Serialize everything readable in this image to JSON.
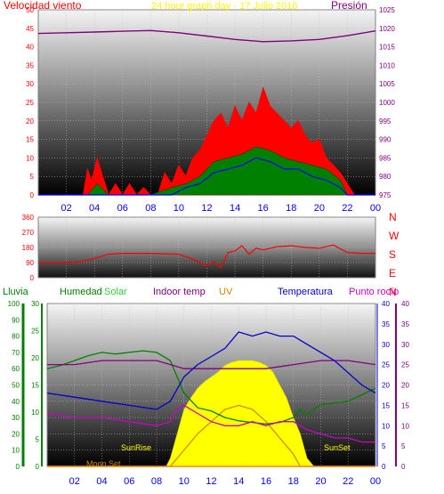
{
  "chart_data": [
    {
      "type": "line",
      "panel": "wind-pressure",
      "title": "24 hour graph day - 17 Julio 2016",
      "left_label": "Velocidad viento",
      "right_label": "Presión",
      "x_ticks": [
        "02",
        "04",
        "06",
        "08",
        "10",
        "12",
        "14",
        "16",
        "18",
        "20",
        "22",
        "00"
      ],
      "ylim_left": [
        0,
        50
      ],
      "yticks_left": [
        0,
        5,
        10,
        15,
        20,
        25,
        30,
        35,
        40,
        45,
        50
      ],
      "ylim_right": [
        975,
        1025
      ],
      "yticks_right": [
        975,
        980,
        985,
        990,
        995,
        1000,
        1005,
        1010,
        1015,
        1020,
        1025
      ],
      "grid": true,
      "colors": {
        "label": "#ff0000",
        "title": "#ffff00",
        "pressure": "#800080",
        "gust": "#ff0000",
        "avg": "#008000",
        "dir": "#0000ff"
      },
      "series": [
        {
          "key": "pressure",
          "axis": "right",
          "x": [
            0,
            2,
            4,
            6,
            8,
            10,
            12,
            14,
            16,
            18,
            20,
            22,
            24
          ],
          "values": [
            1018.6,
            1018.8,
            1019.0,
            1019.2,
            1019.4,
            1018.8,
            1017.9,
            1017.0,
            1016.4,
            1016.6,
            1017.0,
            1018.0,
            1019.3
          ]
        },
        {
          "key": "gust",
          "axis": "left",
          "x": [
            0,
            3.2,
            3.5,
            3.8,
            4.2,
            4.6,
            5.0,
            5.5,
            6.0,
            6.5,
            7.0,
            7.5,
            8.0,
            8.5,
            9.0,
            9.5,
            10.0,
            10.5,
            11.0,
            11.5,
            12.0,
            12.5,
            13.0,
            13.5,
            14.0,
            14.5,
            15.0,
            15.5,
            16.0,
            16.5,
            17.0,
            17.5,
            18.0,
            18.5,
            19.0,
            19.5,
            20.0,
            20.5,
            21.0,
            21.5,
            22.0,
            22.5,
            23.0,
            24.0
          ],
          "values": [
            0,
            0,
            7,
            4,
            10,
            5,
            0,
            3,
            0,
            3,
            0,
            2,
            0,
            0,
            6,
            3,
            8,
            5,
            10,
            12,
            16,
            20,
            22,
            18,
            24,
            20,
            25,
            22,
            29,
            24,
            22,
            20,
            18,
            20,
            16,
            14,
            15,
            10,
            8,
            6,
            3,
            0,
            0,
            0
          ]
        },
        {
          "key": "avg",
          "axis": "left",
          "x": [
            0,
            3.5,
            4.2,
            5,
            8,
            9.5,
            10.5,
            11.5,
            12.5,
            13.5,
            14.5,
            15.5,
            16.5,
            17.5,
            18.5,
            19.5,
            20.5,
            21.5,
            22,
            24
          ],
          "values": [
            0,
            0,
            3,
            0,
            0,
            2,
            3,
            5,
            9,
            10,
            11,
            13,
            12,
            10,
            9,
            8,
            7,
            4,
            0,
            0
          ]
        },
        {
          "key": "dir",
          "axis": "left",
          "x": [
            0,
            9.5,
            10.5,
            11.5,
            12.5,
            13.5,
            14.5,
            15.5,
            16.5,
            17.5,
            18.5,
            19.5,
            20.5,
            21.5,
            22,
            24
          ],
          "values": [
            0,
            0,
            2,
            3,
            6,
            7,
            8,
            10,
            9,
            7,
            7,
            5,
            4,
            2,
            0,
            0
          ]
        }
      ]
    },
    {
      "type": "line",
      "panel": "wind-direction",
      "ylim": [
        0,
        360
      ],
      "yticks": [
        0,
        90,
        180,
        270,
        360
      ],
      "compass": [
        "N",
        "W",
        "S",
        "E",
        "N"
      ],
      "colors": {
        "dir": "#ff0000",
        "compass": "#ff0000"
      },
      "series": [
        {
          "key": "direction",
          "x": [
            0,
            2,
            3,
            4,
            5,
            6,
            8,
            10,
            11,
            12,
            12.5,
            13,
            13.5,
            14,
            14.5,
            15,
            15.5,
            16,
            17,
            18,
            19,
            20,
            21,
            22,
            23,
            24
          ],
          "values": [
            90,
            90,
            95,
            115,
            140,
            145,
            145,
            140,
            110,
            70,
            95,
            60,
            150,
            160,
            190,
            140,
            175,
            165,
            185,
            190,
            180,
            175,
            195,
            150,
            145,
            145
          ]
        }
      ]
    },
    {
      "type": "line",
      "panel": "weather",
      "header_labels": [
        {
          "key": "rain",
          "text": "Lluvia",
          "color": "#008000"
        },
        {
          "key": "humidity",
          "text": "Humedad",
          "color": "#008000"
        },
        {
          "key": "solar",
          "text": "Solar",
          "color": "#33cc33"
        },
        {
          "key": "indoor",
          "text": "Indoor temp",
          "color": "#800080"
        },
        {
          "key": "uv",
          "text": "UV",
          "color": "#cc8800"
        },
        {
          "key": "temp",
          "text": "Temperatura",
          "color": "#0000cc"
        },
        {
          "key": "dew",
          "text": "Punto rocío",
          "color": "#cc00cc"
        }
      ],
      "x_ticks": [
        "02",
        "04",
        "06",
        "08",
        "10",
        "12",
        "14",
        "16",
        "18",
        "20",
        "22",
        "00"
      ],
      "yticks_humidity": [
        0,
        10,
        20,
        30,
        40,
        50,
        60,
        70,
        80,
        90,
        100
      ],
      "yticks_rain": [
        0,
        5,
        10,
        15,
        20,
        25,
        30
      ],
      "yticks_temp": [
        0,
        5,
        10,
        15,
        20,
        25,
        30,
        35,
        40
      ],
      "annotations": [
        "SunRise",
        "SunSet",
        "Moon Set"
      ],
      "series": [
        {
          "key": "solar",
          "name": "Solar",
          "axis": "humidity",
          "x": [
            0,
            8.7,
            9,
            9.5,
            10,
            10.5,
            11,
            11.5,
            12,
            12.5,
            13,
            13.5,
            14,
            14.5,
            15,
            15.5,
            16,
            16.5,
            17,
            17.5,
            18,
            18.5,
            19,
            19.5,
            24
          ],
          "values": [
            0,
            0,
            5,
            20,
            35,
            42,
            48,
            52,
            55,
            58,
            62,
            64,
            65,
            65,
            65,
            64,
            62,
            58,
            50,
            42,
            30,
            20,
            5,
            0,
            0
          ]
        },
        {
          "key": "humidity",
          "name": "Humedad",
          "axis": "humidity",
          "x": [
            0,
            1,
            2,
            3,
            4,
            5,
            6,
            7,
            8,
            9,
            9.5,
            10,
            11,
            12,
            13,
            14,
            15,
            16,
            17,
            18,
            18.5,
            19,
            20,
            21,
            22,
            23,
            24
          ],
          "values": [
            60,
            62,
            65,
            68,
            70,
            69,
            70,
            71,
            70,
            65,
            55,
            45,
            36,
            34,
            30,
            28,
            27,
            26,
            27,
            30,
            35,
            32,
            38,
            39,
            40,
            44,
            48
          ]
        },
        {
          "key": "temp",
          "name": "Temperatura",
          "axis": "temp",
          "x": [
            0,
            2,
            4,
            6,
            8,
            9,
            10,
            11,
            12,
            13,
            14,
            15,
            16,
            17,
            18,
            19,
            20,
            21,
            22,
            23,
            24
          ],
          "values": [
            18,
            17,
            16,
            15,
            14,
            16,
            22,
            25,
            27,
            29,
            33,
            32,
            33,
            32,
            32,
            30,
            28,
            26,
            23,
            20,
            18
          ]
        },
        {
          "key": "indoor",
          "name": "Indoor temp",
          "axis": "temp",
          "x": [
            0,
            2,
            4,
            6,
            8,
            9,
            10,
            12,
            14,
            16,
            18,
            20,
            22,
            24
          ],
          "values": [
            25,
            25,
            26,
            26,
            26,
            25,
            24,
            24,
            24,
            24,
            25,
            26,
            26,
            25
          ]
        },
        {
          "key": "dew",
          "name": "Punto rocío",
          "axis": "temp",
          "x": [
            0,
            2,
            4,
            6,
            8,
            9,
            9.5,
            10,
            11,
            12,
            13,
            14,
            15,
            16,
            17,
            18,
            19,
            20,
            21,
            22,
            23,
            24
          ],
          "values": [
            13,
            12,
            12,
            11,
            10,
            11,
            14,
            15,
            13,
            11,
            10,
            10,
            11,
            10,
            11,
            11,
            9,
            8,
            7,
            7,
            6,
            6
          ]
        },
        {
          "key": "uv",
          "name": "UV",
          "axis": "temp",
          "x": [
            0,
            9,
            10,
            11,
            12,
            13,
            14,
            15,
            16,
            17,
            18,
            18.5,
            19,
            20,
            24
          ],
          "values": [
            0,
            0,
            4,
            8,
            11,
            14,
            15,
            14,
            11,
            7,
            3,
            0,
            0,
            0,
            0
          ]
        },
        {
          "key": "rain",
          "name": "Lluvia",
          "axis": "rain",
          "x": [
            0,
            24
          ],
          "values": [
            0,
            0
          ]
        }
      ]
    }
  ]
}
